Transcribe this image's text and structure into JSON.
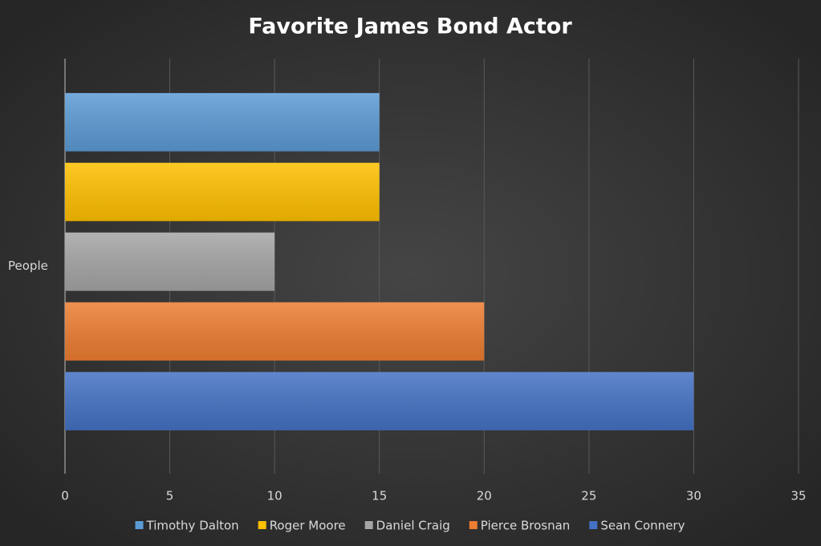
{
  "chart_data": {
    "type": "bar",
    "title": "Favorite James Bond Actor",
    "categories": [
      "People"
    ],
    "series": [
      {
        "name": "Timothy Dalton",
        "color": "#5b9bd5",
        "values": [
          15
        ]
      },
      {
        "name": "Roger Moore",
        "color": "#ffc000",
        "values": [
          15
        ]
      },
      {
        "name": "Daniel Craig",
        "color": "#a5a5a5",
        "values": [
          10
        ]
      },
      {
        "name": "Pierce Brosnan",
        "color": "#ed7d31",
        "values": [
          20
        ]
      },
      {
        "name": "Sean Connery",
        "color": "#4472c4",
        "values": [
          30
        ]
      }
    ],
    "xlim": [
      0,
      35
    ],
    "xticks": [
      0,
      5,
      10,
      15,
      20,
      25,
      30,
      35
    ],
    "grid": true,
    "legend": "bottom"
  }
}
